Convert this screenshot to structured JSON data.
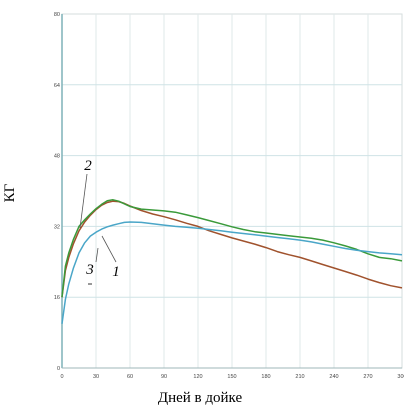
{
  "chart_data": {
    "type": "line",
    "title": "",
    "xlabel": "Дней в дойке",
    "ylabel": "КГ",
    "xlim": [
      0,
      300
    ],
    "ylim": [
      0,
      80
    ],
    "x_ticks": [
      "0",
      "30",
      "60",
      "90",
      "120",
      "150",
      "180",
      "210",
      "240",
      "270",
      "300"
    ],
    "y_ticks": [
      "0",
      "16",
      "32",
      "48",
      "64",
      "80"
    ],
    "grid": true,
    "series": [
      {
        "name": "1",
        "color": "#a0522d",
        "x": [
          0,
          3,
          6,
          10,
          15,
          20,
          25,
          30,
          35,
          40,
          45,
          50,
          55,
          60,
          70,
          80,
          90,
          100,
          110,
          120,
          130,
          140,
          150,
          160,
          170,
          180,
          190,
          200,
          210,
          220,
          230,
          240,
          250,
          260,
          270,
          280,
          290,
          300
        ],
        "y": [
          16,
          22,
          25,
          28,
          31,
          33,
          34.5,
          35.8,
          36.8,
          37.4,
          37.7,
          37.6,
          37.2,
          36.6,
          35.6,
          34.8,
          34.2,
          33.5,
          32.7,
          32,
          31,
          30.2,
          29.4,
          28.7,
          28,
          27.2,
          26.3,
          25.6,
          25,
          24.2,
          23.4,
          22.6,
          21.8,
          21,
          20.1,
          19.3,
          18.6,
          18.1
        ]
      },
      {
        "name": "2",
        "color": "#3a9a3a",
        "x": [
          0,
          3,
          6,
          10,
          15,
          20,
          25,
          30,
          35,
          40,
          45,
          50,
          55,
          60,
          70,
          80,
          90,
          100,
          110,
          120,
          130,
          140,
          150,
          160,
          170,
          180,
          190,
          200,
          210,
          220,
          230,
          240,
          250,
          260,
          270,
          280,
          290,
          300
        ],
        "y": [
          16,
          23,
          26,
          29,
          32,
          33.5,
          34.8,
          36,
          37,
          37.8,
          38,
          37.7,
          37.1,
          36.5,
          35.9,
          35.7,
          35.5,
          35.2,
          34.6,
          34,
          33.3,
          32.6,
          31.9,
          31.3,
          30.8,
          30.5,
          30.2,
          29.9,
          29.6,
          29.3,
          28.9,
          28.3,
          27.6,
          26.8,
          25.8,
          25,
          24.7,
          24.2
        ]
      },
      {
        "name": "3",
        "color": "#4aa6c8",
        "x": [
          0,
          3,
          6,
          10,
          15,
          20,
          25,
          30,
          35,
          40,
          45,
          50,
          55,
          60,
          70,
          80,
          90,
          100,
          110,
          120,
          130,
          140,
          150,
          160,
          170,
          180,
          190,
          200,
          210,
          220,
          230,
          240,
          250,
          260,
          270,
          280,
          290,
          300
        ],
        "y": [
          10,
          15.5,
          19,
          22.5,
          26,
          28.3,
          29.8,
          30.7,
          31.4,
          31.9,
          32.3,
          32.6,
          32.9,
          33,
          32.9,
          32.6,
          32.3,
          32,
          31.8,
          31.6,
          31.3,
          31,
          30.7,
          30.4,
          30.1,
          29.8,
          29.5,
          29.2,
          28.9,
          28.5,
          28,
          27.5,
          27,
          26.6,
          26.3,
          26,
          25.8,
          25.6
        ]
      }
    ]
  }
}
